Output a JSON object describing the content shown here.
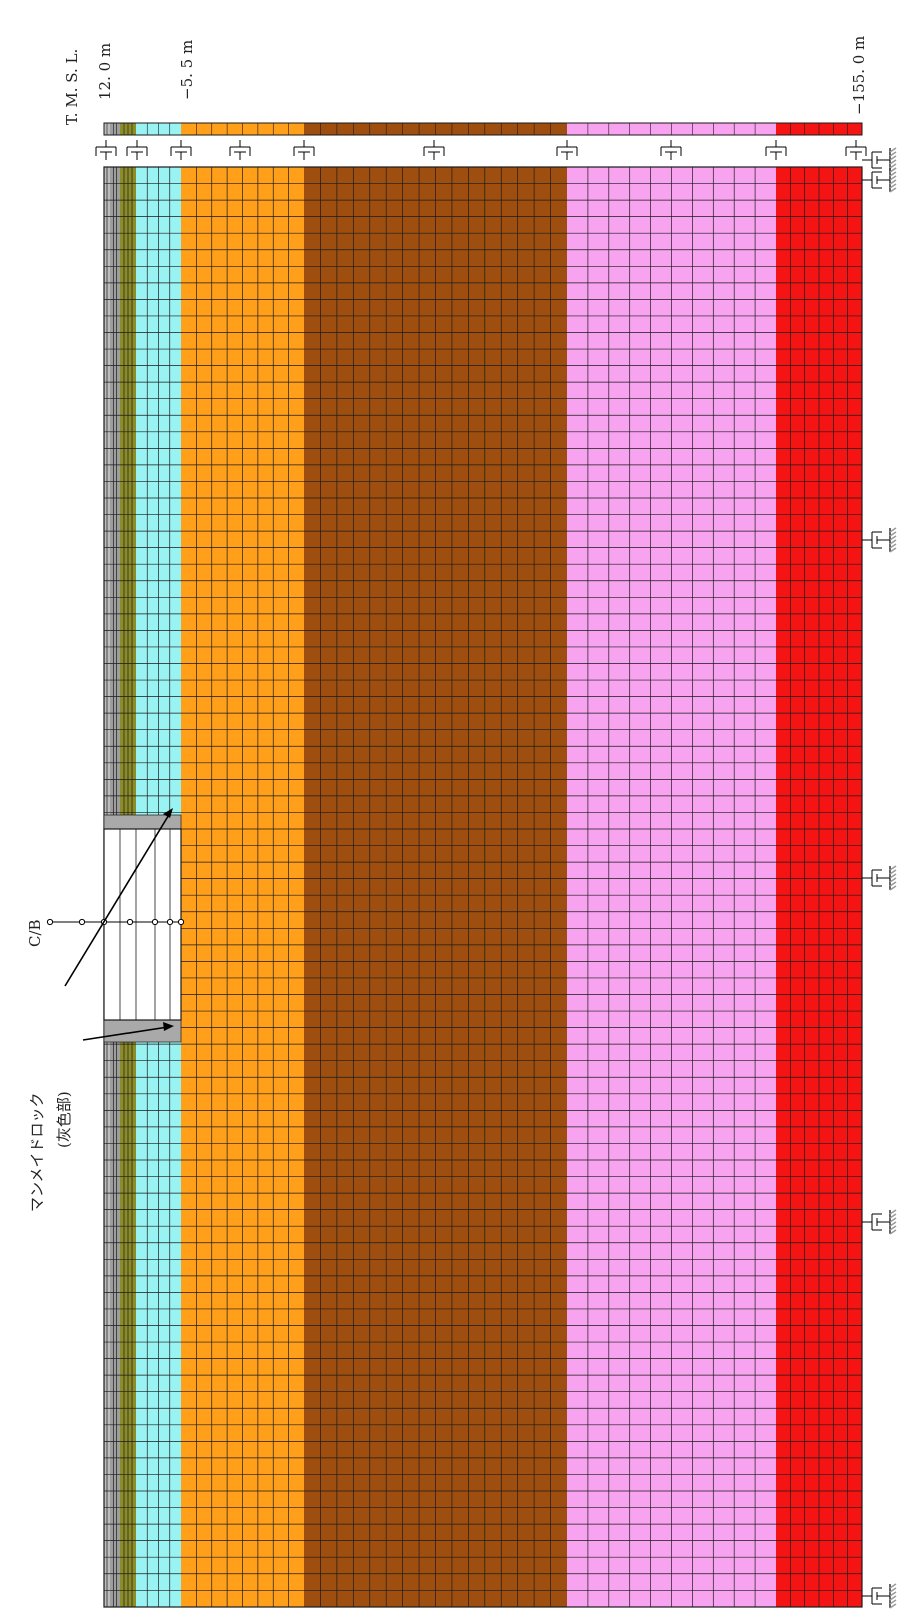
{
  "elevations": {
    "title": "T. M. S. L.",
    "top": "12. 0  m",
    "mid": "−5. 5  m",
    "bottom": "−155. 0  m"
  },
  "building_label": "C/B",
  "annotation": {
    "line1": "マンメイドロック",
    "line2": "(灰色部)"
  },
  "layers": [
    {
      "name": "layer-surface-1",
      "color": "#bdbdbd"
    },
    {
      "name": "layer-surface-2",
      "color": "#9e9e9e"
    },
    {
      "name": "layer-olive",
      "color": "#8c8c28"
    },
    {
      "name": "layer-cyan",
      "color": "#9af3f3"
    },
    {
      "name": "layer-orange",
      "color": "#ff9f1a"
    },
    {
      "name": "layer-brown",
      "color": "#9e4f0f"
    },
    {
      "name": "layer-pink",
      "color": "#f7a3f0"
    },
    {
      "name": "layer-red",
      "color": "#f51414"
    }
  ],
  "colors": {
    "grid_line": "#1a1a1a",
    "man_made_rock": "#a9a9a9",
    "building": "#ffffff"
  }
}
